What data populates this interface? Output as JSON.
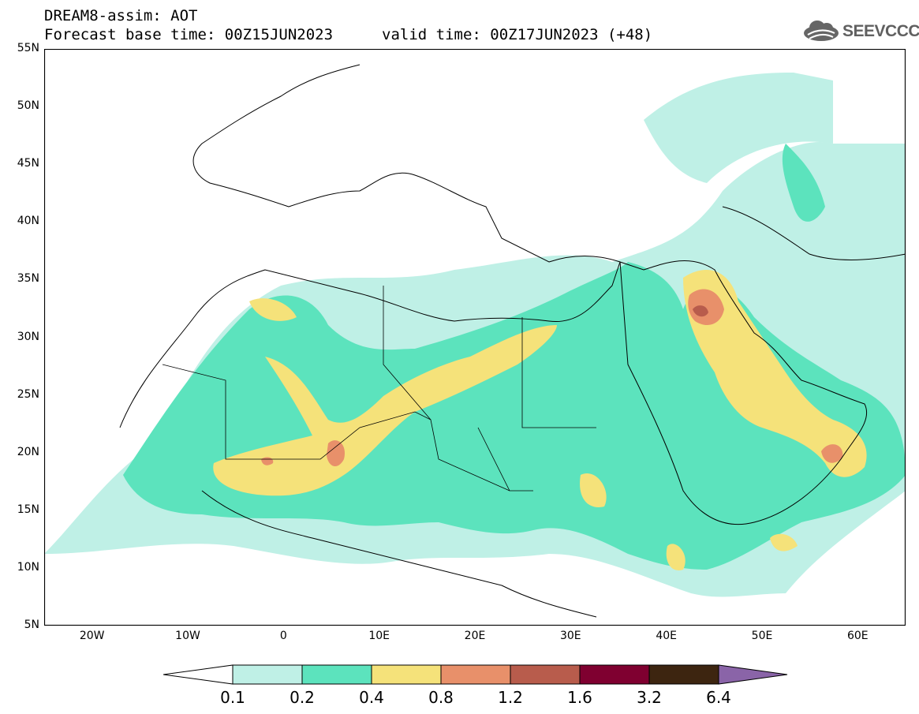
{
  "header": {
    "title": "DREAM8-assim: AOT",
    "base_time": "Forecast base time: 00Z15JUN2023",
    "valid_time": "valid time: 00Z17JUN2023 (+48)"
  },
  "logo": {
    "text": "SEEVCCC",
    "icon": "cloud-logo-icon"
  },
  "axes": {
    "lat_labels": [
      "55N",
      "50N",
      "45N",
      "40N",
      "35N",
      "30N",
      "25N",
      "20N",
      "15N",
      "10N",
      "5N"
    ],
    "lon_labels": [
      "20W",
      "10W",
      "0",
      "10E",
      "20E",
      "30E",
      "40E",
      "50E",
      "60E"
    ]
  },
  "colorbar": {
    "labels": [
      "0.1",
      "0.2",
      "0.4",
      "0.8",
      "1.2",
      "1.6",
      "3.2",
      "6.4"
    ],
    "colors": [
      "#ffffff",
      "#bff0e6",
      "#5ce3bd",
      "#f5e27a",
      "#e8906a",
      "#b85c4c",
      "#7f0030",
      "#3d2510",
      "#8a64a8"
    ]
  },
  "map": {
    "region": "North Africa, Europe and Middle East",
    "lat_range": [
      5,
      55
    ],
    "lon_range": [
      -25,
      65
    ]
  }
}
